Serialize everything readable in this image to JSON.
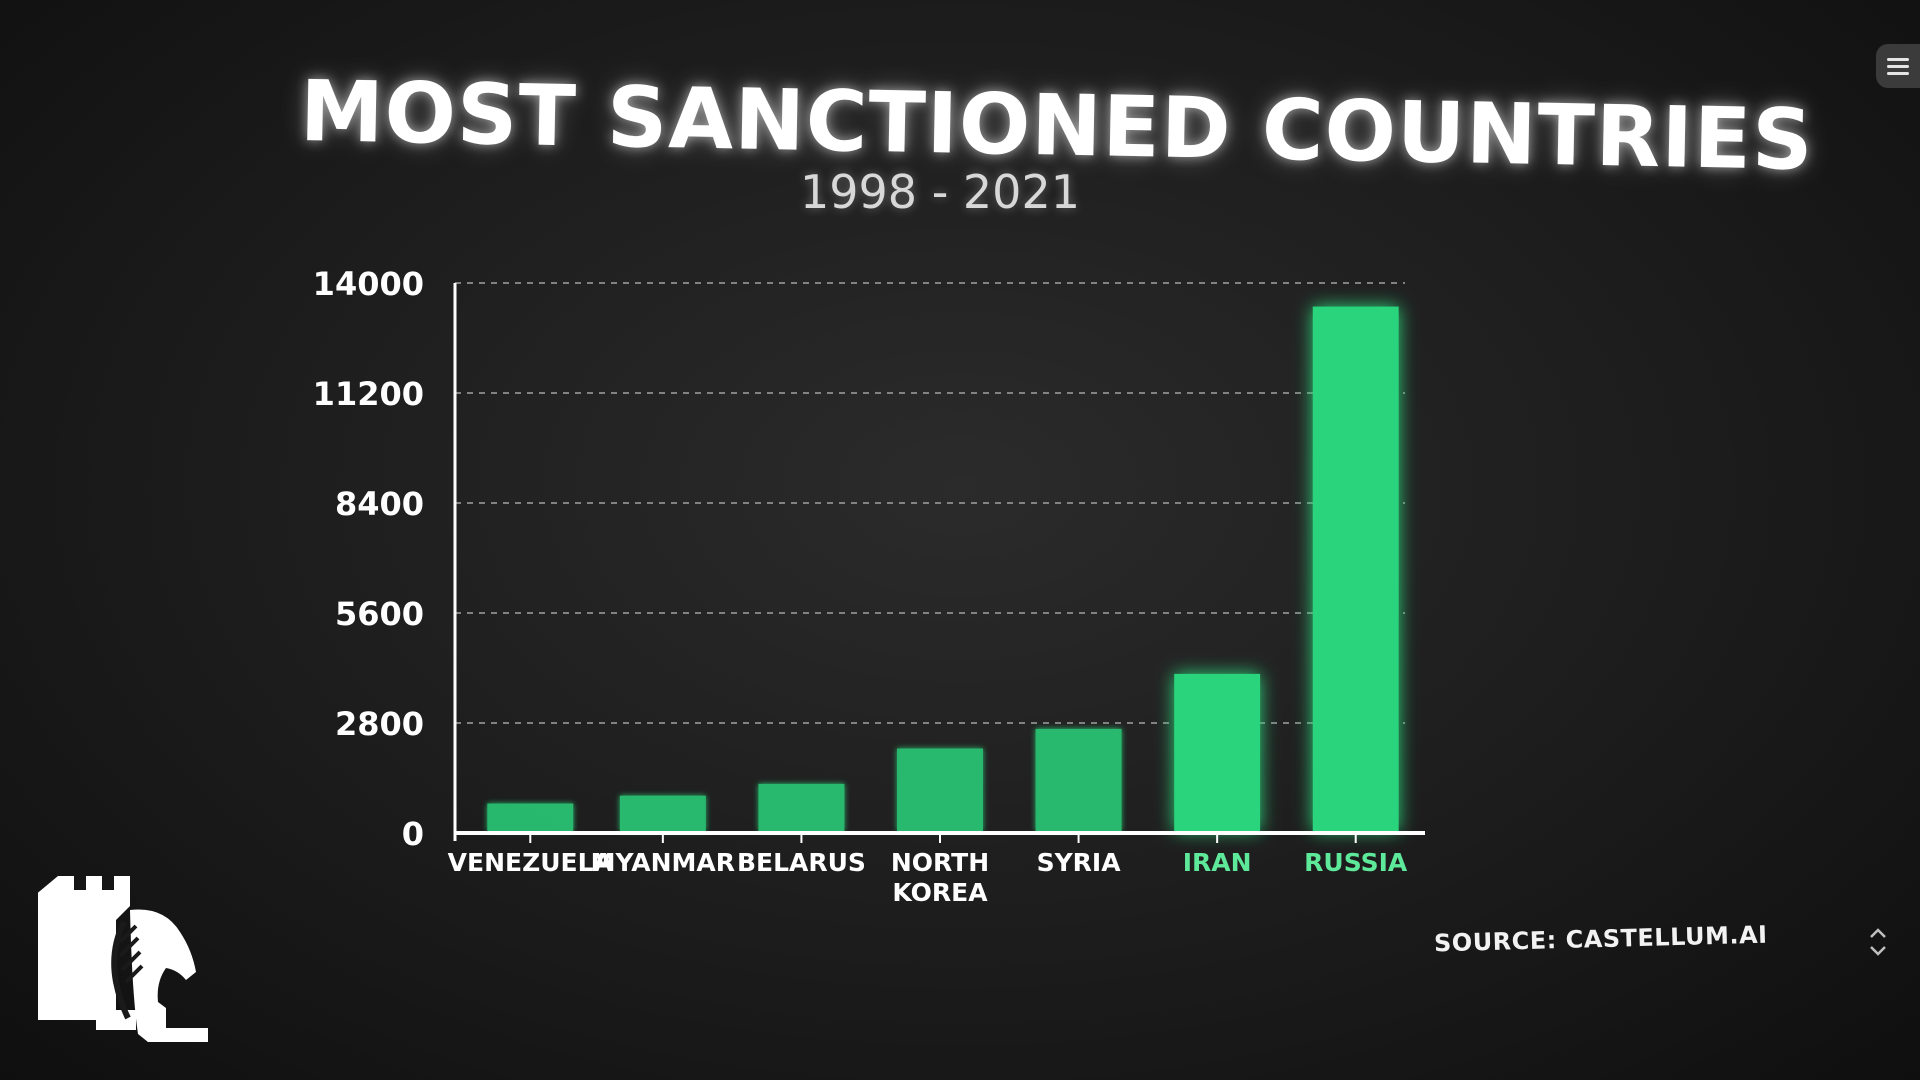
{
  "chart_data": {
    "type": "bar",
    "title": "MOST SANCTIONED COUNTRIES",
    "subtitle": "1998 - 2021",
    "categories": [
      "VENEZUELA",
      "MYANMAR",
      "BELARUS",
      "NORTH KOREA",
      "SYRIA",
      "IRAN",
      "RUSSIA"
    ],
    "values": [
      750,
      950,
      1250,
      2150,
      2650,
      4050,
      13400
    ],
    "y_ticks": [
      "0",
      "2800",
      "5600",
      "8400",
      "11200",
      "14000"
    ],
    "ylim": [
      0,
      14000
    ],
    "grid": "horizontal dashed",
    "xlabel": "",
    "ylabel": "",
    "bar_color": "#2bd47c",
    "highlight_label_color": "#5ee89a",
    "highlight_categories": [
      "IRAN",
      "RUSSIA"
    ]
  },
  "source": "SOURCE: CASTELLUM.AI",
  "icons": {
    "menu": "hamburger-menu-icon",
    "logo": "chess-rook-knight-logo",
    "scroll": "chevron-up-down-icon"
  }
}
